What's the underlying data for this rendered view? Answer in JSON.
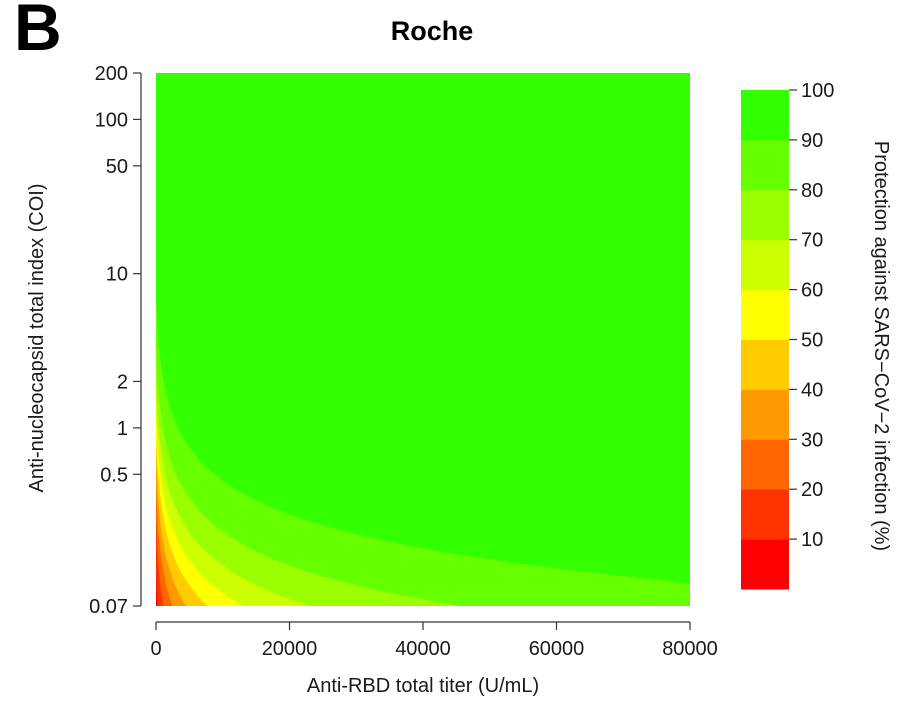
{
  "panel_label": "B",
  "chart_data": {
    "type": "heatmap",
    "title": "Roche",
    "xlabel": "Anti-RBD total titer (U/mL)",
    "ylabel": "Anti-nucleocapsid total index (COI)",
    "colorbar_label": "Protection against SARS−CoV−2 infection (%)",
    "xlim": [
      0,
      80000
    ],
    "ylim": [
      0.07,
      200
    ],
    "y_scale": "log",
    "x_ticks": [
      {
        "value": 0,
        "label": "0"
      },
      {
        "value": 20000,
        "label": "20000"
      },
      {
        "value": 40000,
        "label": "40000"
      },
      {
        "value": 60000,
        "label": "60000"
      },
      {
        "value": 80000,
        "label": "80000"
      }
    ],
    "y_ticks": [
      {
        "value": 0.07,
        "label": "0.07"
      },
      {
        "value": 0.5,
        "label": "0.5"
      },
      {
        "value": 1,
        "label": "1"
      },
      {
        "value": 2,
        "label": "2"
      },
      {
        "value": 10,
        "label": "10"
      },
      {
        "value": 50,
        "label": "50"
      },
      {
        "value": 100,
        "label": "100"
      },
      {
        "value": 200,
        "label": "200"
      }
    ],
    "colorbar_range": [
      0,
      100
    ],
    "colorbar_ticks": [
      {
        "value": 10,
        "label": "10"
      },
      {
        "value": 20,
        "label": "20"
      },
      {
        "value": 30,
        "label": "30"
      },
      {
        "value": 40,
        "label": "40"
      },
      {
        "value": 50,
        "label": "50"
      },
      {
        "value": 60,
        "label": "60"
      },
      {
        "value": 70,
        "label": "70"
      },
      {
        "value": 80,
        "label": "80"
      },
      {
        "value": 90,
        "label": "90"
      },
      {
        "value": 100,
        "label": "100"
      }
    ],
    "levels": [
      {
        "min": 0,
        "max": 10,
        "color": "#ff0000"
      },
      {
        "min": 10,
        "max": 20,
        "color": "#ff3300"
      },
      {
        "min": 20,
        "max": 30,
        "color": "#ff6600"
      },
      {
        "min": 30,
        "max": 40,
        "color": "#ff9900"
      },
      {
        "min": 40,
        "max": 50,
        "color": "#ffcc00"
      },
      {
        "min": 50,
        "max": 60,
        "color": "#ffff00"
      },
      {
        "min": 60,
        "max": 70,
        "color": "#ccff00"
      },
      {
        "min": 70,
        "max": 80,
        "color": "#99ff00"
      },
      {
        "min": 80,
        "max": 90,
        "color": "#66ff00"
      },
      {
        "min": 90,
        "max": 100,
        "color": "#33ff00"
      }
    ],
    "grid": false,
    "legend": "right"
  }
}
